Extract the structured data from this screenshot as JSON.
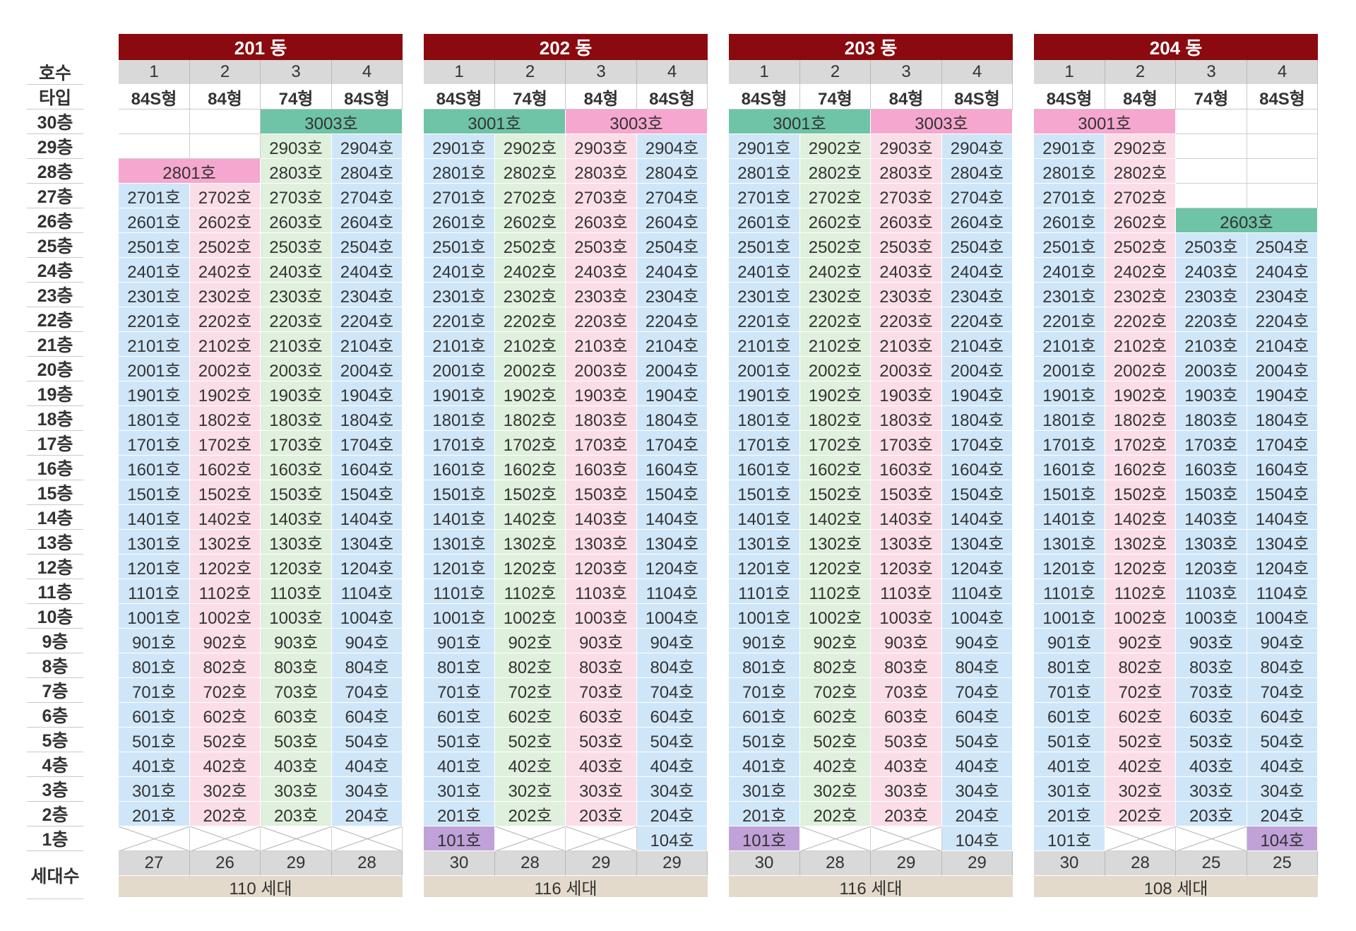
{
  "labels": {
    "unit_header": "호수",
    "type_header": "타입",
    "floors": [
      "30층",
      "29층",
      "28층",
      "27층",
      "26층",
      "25층",
      "24층",
      "23층",
      "22층",
      "21층",
      "20층",
      "19층",
      "18층",
      "17층",
      "16층",
      "15층",
      "14층",
      "13층",
      "12층",
      "11층",
      "10층",
      "9층",
      "8층",
      "7층",
      "6층",
      "5층",
      "4층",
      "3층",
      "2층",
      "1층"
    ],
    "households_header": "세대수"
  },
  "colors": {
    "blue": "#cfe6f8",
    "pink": "#fbdde8",
    "green": "#dff0dc",
    "teal": "#6fc3a6",
    "hotpink": "#f6a7cf",
    "purple": "#c0a2d8",
    "header_red": "#8b0a0f",
    "header_gray": "#d9d9d9",
    "summary_tan": "#e3dacb"
  },
  "buildings": [
    {
      "name": "201 동",
      "line_numbers": [
        "1",
        "2",
        "3",
        "4"
      ],
      "types": [
        "84S형",
        "84형",
        "74형",
        "84S형"
      ],
      "column_colors": [
        "blue",
        "pink",
        "green",
        "blue"
      ],
      "floor_one": [
        null,
        null,
        null,
        null
      ],
      "special": [
        {
          "floor": 30,
          "start": 3,
          "span": 2,
          "label": "3003호",
          "color": "teal"
        },
        {
          "floor": 28,
          "start": 1,
          "span": 2,
          "label": "2801호",
          "color": "hotpink"
        }
      ],
      "empty": [
        [
          30,
          1
        ],
        [
          30,
          2
        ],
        [
          29,
          1
        ],
        [
          29,
          2
        ]
      ],
      "counts": [
        "27",
        "26",
        "29",
        "28"
      ],
      "total": "110 세대"
    },
    {
      "name": "202 동",
      "line_numbers": [
        "1",
        "2",
        "3",
        "4"
      ],
      "types": [
        "84S형",
        "74형",
        "84형",
        "84S형"
      ],
      "column_colors": [
        "blue",
        "green",
        "pink",
        "blue"
      ],
      "floor_one": [
        {
          "label": "101호",
          "color": "purple"
        },
        null,
        null,
        {
          "label": "104호",
          "color": "blue"
        }
      ],
      "special": [
        {
          "floor": 30,
          "start": 1,
          "span": 2,
          "label": "3001호",
          "color": "teal"
        },
        {
          "floor": 30,
          "start": 3,
          "span": 2,
          "label": "3003호",
          "color": "hotpink"
        }
      ],
      "empty": [],
      "counts": [
        "30",
        "28",
        "29",
        "29"
      ],
      "total": "116 세대"
    },
    {
      "name": "203 동",
      "line_numbers": [
        "1",
        "2",
        "3",
        "4"
      ],
      "types": [
        "84S형",
        "74형",
        "84형",
        "84S형"
      ],
      "column_colors": [
        "blue",
        "green",
        "pink",
        "blue"
      ],
      "floor_one": [
        {
          "label": "101호",
          "color": "purple"
        },
        null,
        null,
        {
          "label": "104호",
          "color": "blue"
        }
      ],
      "special": [
        {
          "floor": 30,
          "start": 1,
          "span": 2,
          "label": "3001호",
          "color": "teal"
        },
        {
          "floor": 30,
          "start": 3,
          "span": 2,
          "label": "3003호",
          "color": "hotpink"
        }
      ],
      "empty": [],
      "counts": [
        "30",
        "28",
        "29",
        "29"
      ],
      "total": "116 세대"
    },
    {
      "name": "204 동",
      "line_numbers": [
        "1",
        "2",
        "3",
        "4"
      ],
      "types": [
        "84S형",
        "84형",
        "74형",
        "84S형"
      ],
      "column_colors": [
        "blue",
        "pink",
        "blue",
        "blue"
      ],
      "floor_one": [
        {
          "label": "101호",
          "color": "blue"
        },
        null,
        null,
        {
          "label": "104호",
          "color": "purple"
        }
      ],
      "special": [
        {
          "floor": 30,
          "start": 1,
          "span": 2,
          "label": "3001호",
          "color": "hotpink"
        },
        {
          "floor": 26,
          "start": 3,
          "span": 2,
          "label": "2603호",
          "color": "teal"
        }
      ],
      "empty": [
        [
          30,
          3
        ],
        [
          30,
          4
        ],
        [
          29,
          3
        ],
        [
          29,
          4
        ],
        [
          28,
          3
        ],
        [
          28,
          4
        ],
        [
          27,
          3
        ],
        [
          27,
          4
        ]
      ],
      "counts": [
        "30",
        "28",
        "25",
        "25"
      ],
      "total": "108 세대"
    }
  ]
}
